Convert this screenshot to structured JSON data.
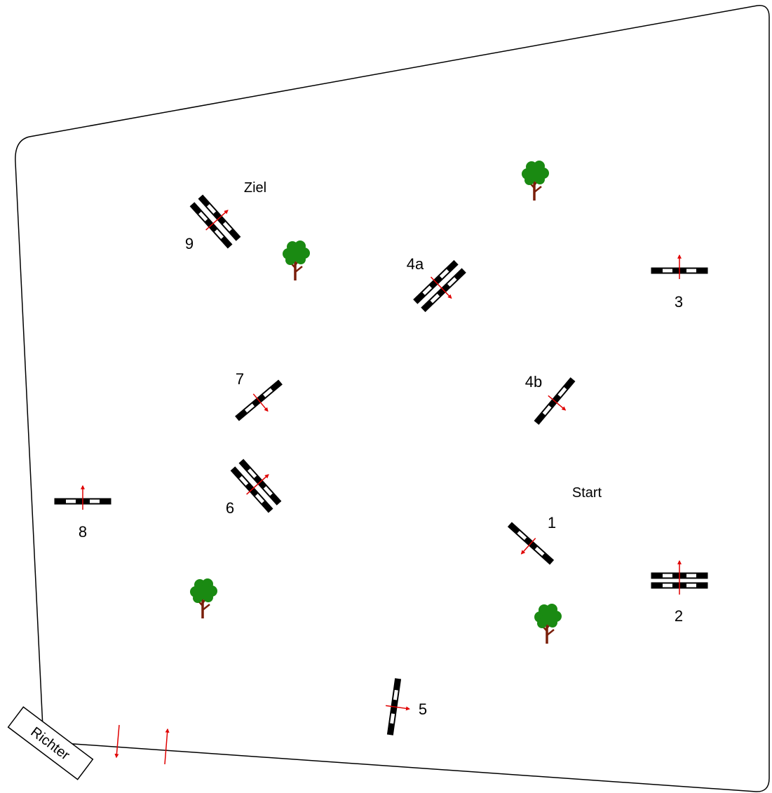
{
  "arena": {
    "labels": {
      "start": "Start",
      "finish": "Ziel",
      "judge": "Richter"
    }
  },
  "obstacles": [
    {
      "id": "1",
      "label": "1",
      "kind": "vertical"
    },
    {
      "id": "2",
      "label": "2",
      "kind": "oxer"
    },
    {
      "id": "3",
      "label": "3",
      "kind": "vertical"
    },
    {
      "id": "4a",
      "label": "4a",
      "kind": "oxer"
    },
    {
      "id": "4b",
      "label": "4b",
      "kind": "vertical"
    },
    {
      "id": "5",
      "label": "5",
      "kind": "vertical"
    },
    {
      "id": "6",
      "label": "6",
      "kind": "oxer"
    },
    {
      "id": "7",
      "label": "7",
      "kind": "vertical"
    },
    {
      "id": "8",
      "label": "8",
      "kind": "vertical"
    },
    {
      "id": "9",
      "label": "9",
      "kind": "oxer"
    }
  ],
  "colors": {
    "pole_dark": "#000000",
    "pole_light": "#ffffff",
    "arrow": "#e00000",
    "tree_crown": "#1a8a12",
    "tree_trunk": "#7a1f0a"
  },
  "icons": {
    "tree": "tree-icon",
    "arrow": "direction-arrow-icon"
  }
}
